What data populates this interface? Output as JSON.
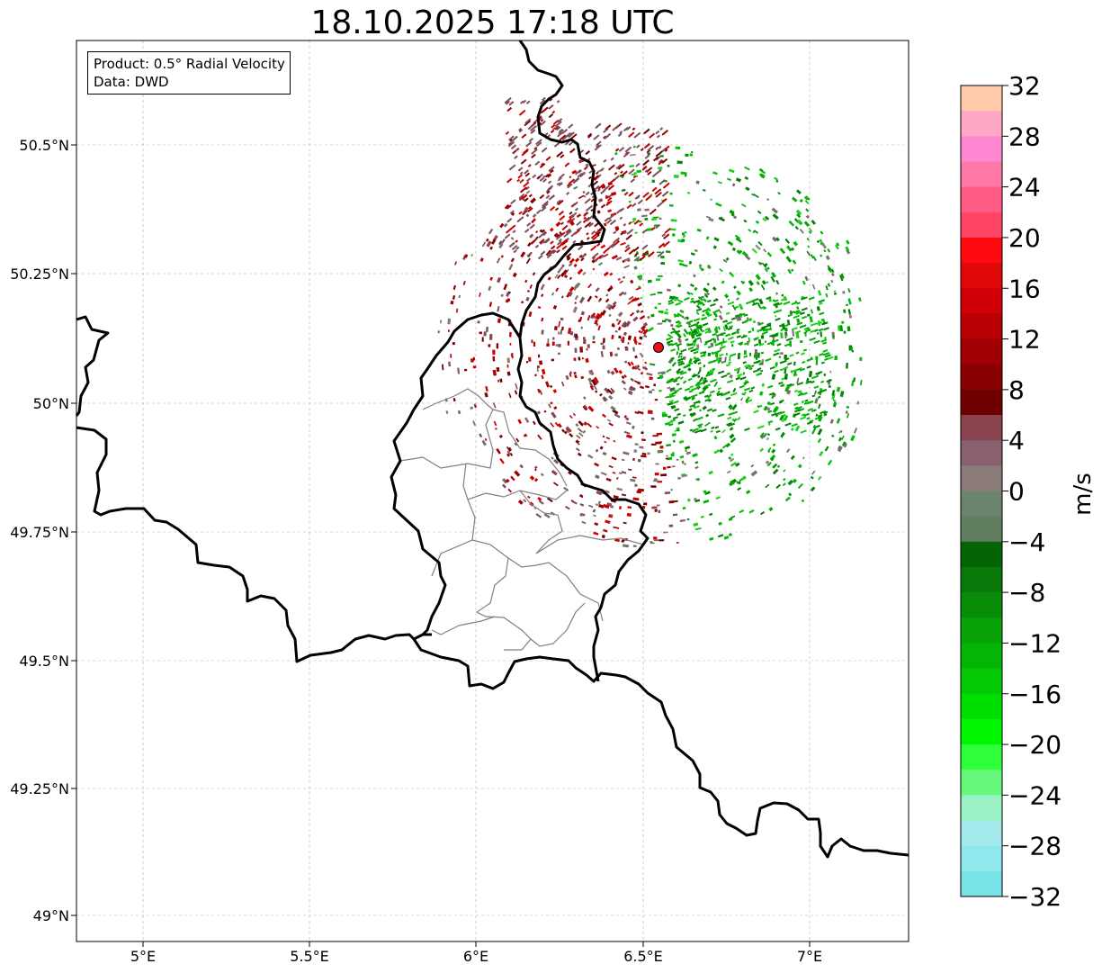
{
  "title": "18.10.2025 17:18 UTC",
  "info": {
    "product": "Product: 0.5° Radial Velocity",
    "data": "Data: DWD"
  },
  "map": {
    "lon_range": [
      4.8,
      7.3
    ],
    "lat_range": [
      48.95,
      50.7
    ],
    "lon_ticks": [
      "5°E",
      "5.5°E",
      "6°E",
      "6.5°E",
      "7°E"
    ],
    "lat_ticks": [
      "49°N",
      "49.25°N",
      "49.5°N",
      "49.75°N",
      "50°N",
      "50.25°N",
      "50.5°N"
    ],
    "gridlines": true,
    "radar_site": {
      "lon": 6.548,
      "lat": 50.11,
      "marker": "red-dot"
    }
  },
  "colorbar": {
    "label": "m/s",
    "range": [
      -32,
      32
    ],
    "tick_labels": [
      "32",
      "28",
      "24",
      "20",
      "16",
      "12",
      "8",
      "4",
      "0",
      "−4",
      "−8",
      "−12",
      "−16",
      "−20",
      "−24",
      "−28",
      "−32"
    ],
    "colors_top_to_bottom": [
      "#ffcbaa",
      "#ffa8c4",
      "#ff88d2",
      "#ff78a8",
      "#ff5c88",
      "#ff4466",
      "#ff0a10",
      "#e00808",
      "#d00006",
      "#b80004",
      "#a00004",
      "#880002",
      "#700000",
      "#8a4450",
      "#8a6070",
      "#8a7a78",
      "#6a8470",
      "#5f7e5e",
      "#056405",
      "#087808",
      "#088d08",
      "#07a307",
      "#05b505",
      "#03c803",
      "#00e000",
      "#00f500",
      "#2fff3a",
      "#66f87a",
      "#98f2c4",
      "#a5eaec",
      "#8ee8ec",
      "#78e2e8"
    ]
  }
}
